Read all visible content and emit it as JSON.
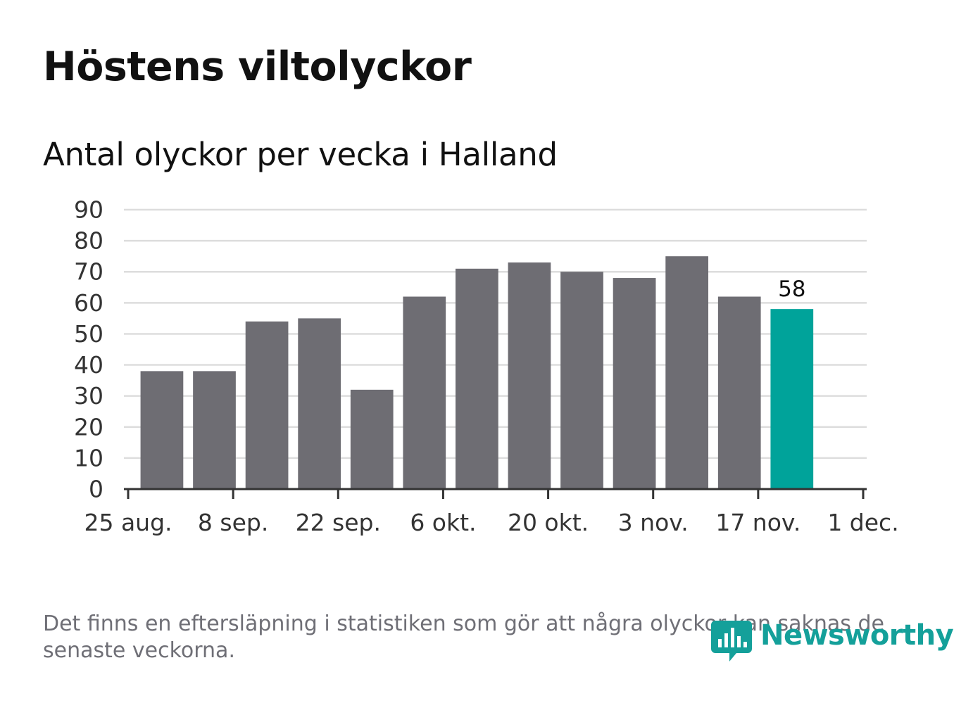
{
  "title": "Höstens viltolyckor",
  "subtitle": "Antal olyckor per vecka i Halland",
  "footnote": "Det finns en eftersläpning i statistiken som gör att några olyckor kan saknas de senaste veckorna.",
  "logo": {
    "text": "Newsworthy",
    "icon": "chart-bubble-icon",
    "color": "#14a09a"
  },
  "chart_data": {
    "type": "bar",
    "title": "Höstens viltolyckor",
    "subtitle": "Antal olyckor per vecka i Halland",
    "xlabel": "",
    "ylabel": "",
    "x": [
      "2019-09-02",
      "2019-09-09",
      "2019-09-16",
      "2019-09-23",
      "2019-09-30",
      "2019-10-07",
      "2019-10-14",
      "2019-10-21",
      "2019-10-28",
      "2019-11-04",
      "2019-11-11",
      "2019-11-18",
      "2019-11-25"
    ],
    "values": [
      38,
      38,
      54,
      55,
      32,
      62,
      71,
      73,
      70,
      68,
      75,
      62,
      58
    ],
    "highlight_index": 12,
    "highlight_label": "58",
    "bar_color": "#6e6d73",
    "highlight_color": "#00a39a",
    "ylim": [
      0,
      90
    ],
    "yticks": [
      0,
      10,
      20,
      30,
      40,
      50,
      60,
      70,
      80,
      90
    ],
    "xlim": [
      "2019-08-25",
      "2019-12-01"
    ],
    "xticks": [
      {
        "date": "2019-08-25",
        "label": "25 aug."
      },
      {
        "date": "2019-09-08",
        "label": "8 sep."
      },
      {
        "date": "2019-09-22",
        "label": "22 sep."
      },
      {
        "date": "2019-10-06",
        "label": "6 okt."
      },
      {
        "date": "2019-10-20",
        "label": "20 okt."
      },
      {
        "date": "2019-11-03",
        "label": "3 nov."
      },
      {
        "date": "2019-11-17",
        "label": "17 nov."
      },
      {
        "date": "2019-12-01",
        "label": "1 dec."
      }
    ],
    "grid": true,
    "legend": "none"
  }
}
